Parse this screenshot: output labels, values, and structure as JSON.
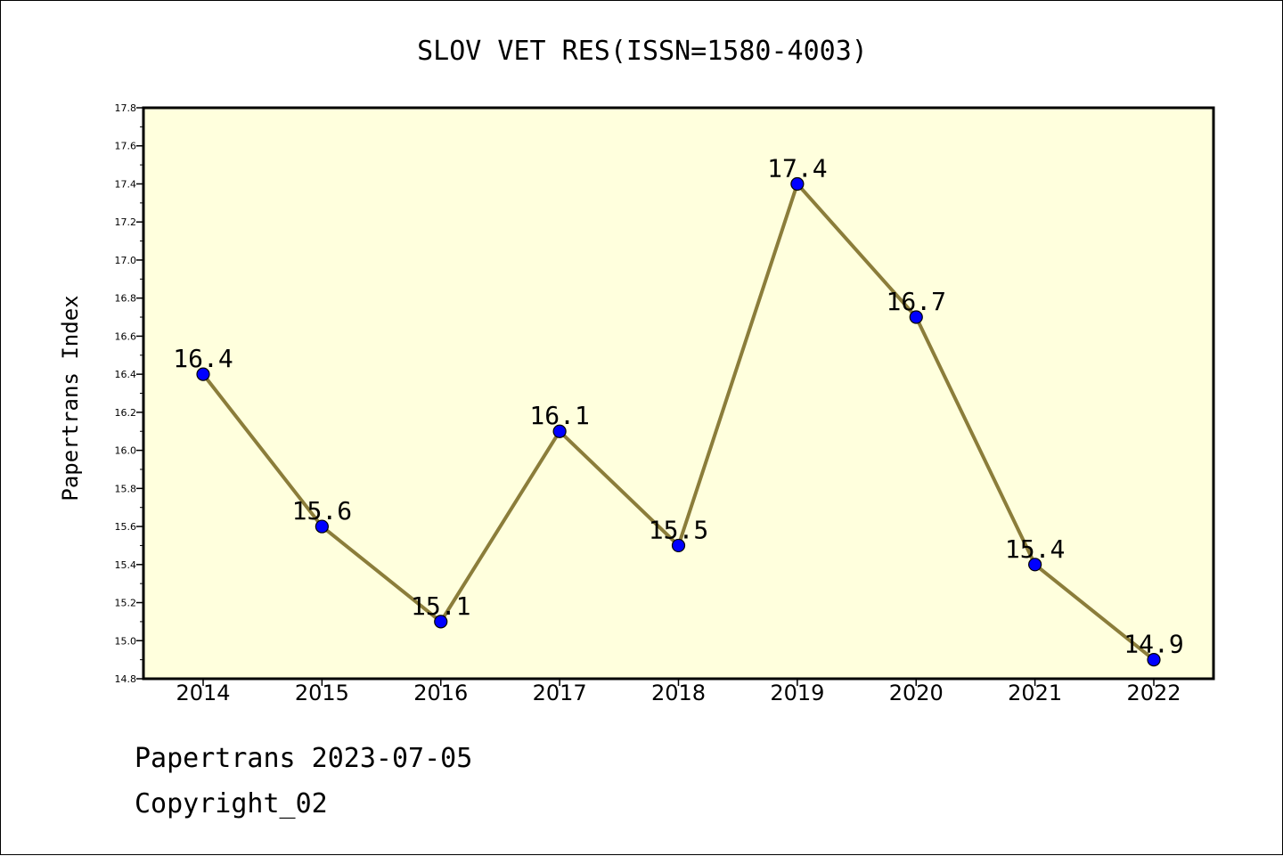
{
  "chart_data": {
    "type": "line",
    "title": "SLOV VET RES(ISSN=1580-4003)",
    "xlabel": "",
    "ylabel": "Papertrans Index",
    "categories": [
      "2014",
      "2015",
      "2016",
      "2017",
      "2018",
      "2019",
      "2020",
      "2021",
      "2022"
    ],
    "values": [
      16.4,
      15.6,
      15.1,
      16.1,
      15.5,
      17.4,
      16.7,
      15.4,
      14.9
    ],
    "data_labels": [
      "16.4",
      "15.6",
      "15.1",
      "16.1",
      "15.5",
      "17.4",
      "16.7",
      "15.4",
      "14.9"
    ],
    "ylim": [
      14.8,
      17.8
    ],
    "yticks": [
      "14.8",
      "15.0",
      "15.2",
      "15.4",
      "15.6",
      "15.8",
      "16.0",
      "16.2",
      "16.4",
      "16.6",
      "16.8",
      "17.0",
      "17.2",
      "17.4",
      "17.6",
      "17.8"
    ],
    "grid": false,
    "legend": "none",
    "colors": {
      "plot_background": "#ffffdd",
      "line": "#8b7d3a",
      "marker": "#0000ff",
      "marker_edge": "#000000"
    }
  },
  "footer": {
    "line1": "Papertrans 2023-07-05",
    "line2": "Copyright_02"
  }
}
